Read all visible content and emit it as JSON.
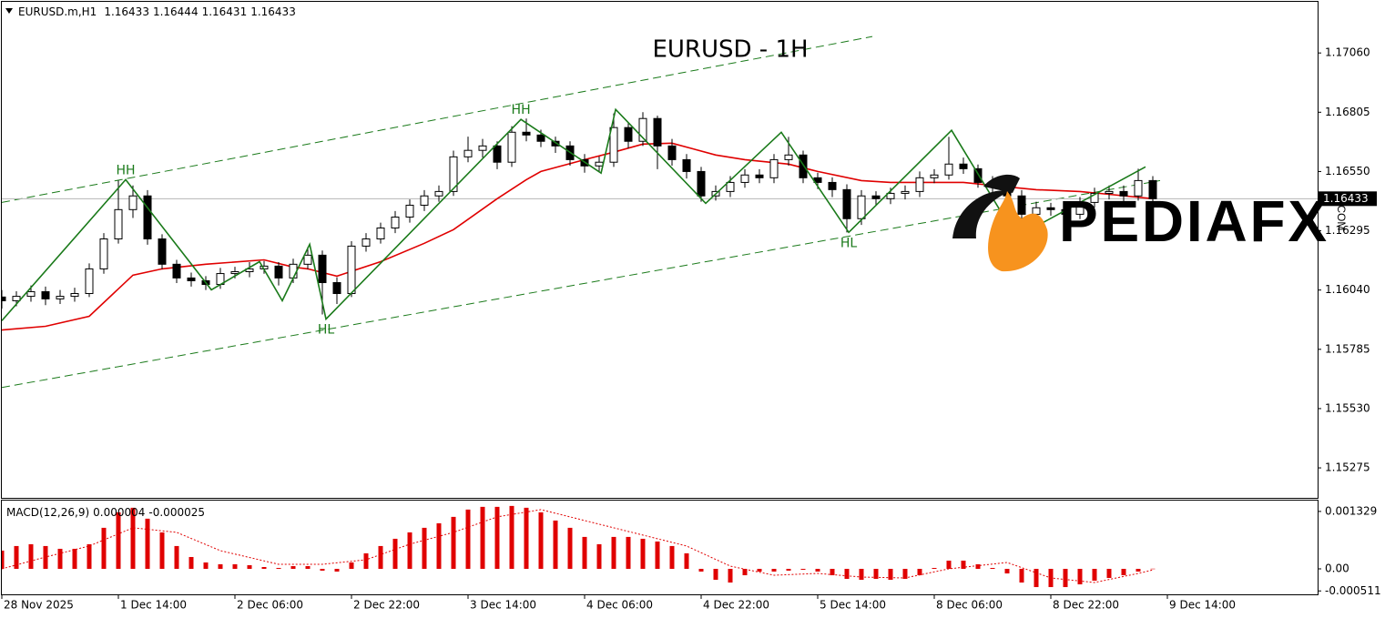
{
  "chart_data": [
    {
      "type": "candlestick",
      "symbol": "EURUSD.m,H1",
      "header_ohlc": [
        1.16433,
        1.16444,
        1.16431,
        1.16433
      ],
      "title": "EURUSD - 1H",
      "xlim": [
        0,
        90.25
      ],
      "xticks": [
        {
          "value": 0,
          "label": "28 Nov 2025"
        },
        {
          "value": 8,
          "label": "1 Dec 14:00"
        },
        {
          "value": 16,
          "label": "2 Dec 06:00"
        },
        {
          "value": 24,
          "label": "2 Dec 22:00"
        },
        {
          "value": 32,
          "label": "3 Dec 14:00"
        },
        {
          "value": 40,
          "label": "4 Dec 06:00"
        },
        {
          "value": 48,
          "label": "4 Dec 22:00"
        },
        {
          "value": 56,
          "label": "5 Dec 14:00"
        },
        {
          "value": 64,
          "label": "8 Dec 06:00"
        },
        {
          "value": 72,
          "label": "8 Dec 22:00"
        },
        {
          "value": 80,
          "label": "9 Dec 14:00"
        }
      ],
      "ylim": [
        1.15146,
        1.1728
      ],
      "yticks": [
        1.15275,
        {
          "value": 1.1553,
          "label": "1.15530"
        },
        1.15785,
        {
          "value": 1.1604,
          "label": "1.16040"
        },
        1.16295,
        {
          "value": 1.1655,
          "label": "1.16550"
        },
        1.16805,
        {
          "value": 1.1706,
          "label": "1.17060"
        }
      ],
      "up_color": "#ffffff",
      "down_color": "#000000",
      "open": [
        1.1601,
        1.15994,
        1.16013,
        1.16033,
        1.16002,
        1.16013,
        1.16025,
        1.16131,
        1.1626,
        1.16386,
        1.16445,
        1.1626,
        1.16151,
        1.16092,
        1.1608,
        1.16064,
        1.16111,
        1.16119,
        1.16131,
        1.16143,
        1.16092,
        1.16151,
        1.1619,
        1.16072,
        1.16025,
        1.16229,
        1.1626,
        1.16307,
        1.16354,
        1.16405,
        1.16445,
        1.16464,
        1.16613,
        1.16641,
        1.1666,
        1.1659,
        1.16719,
        1.16707,
        1.1668,
        1.1666,
        1.16601,
        1.16574,
        1.1659,
        1.16739,
        1.1668,
        1.16778,
        1.1666,
        1.16601,
        1.1655,
        1.16445,
        1.16464,
        1.16503,
        1.16535,
        1.16523,
        1.16601,
        1.16621,
        1.16523,
        1.16503,
        1.16472,
        1.16347,
        1.16445,
        1.16433,
        1.16456,
        1.16464,
        1.16523,
        1.16535,
        1.16582,
        1.16562,
        1.16503,
        1.16484,
        1.16445,
        1.16366,
        1.16394,
        1.16386,
        1.16366,
        1.16417,
        1.16456,
        1.16464,
        1.16445,
        1.16511
      ],
      "high": [
        1.1604,
        1.16035,
        1.1606,
        1.16055,
        1.1604,
        1.1605,
        1.16155,
        1.16285,
        1.16511,
        1.1649,
        1.1647,
        1.1628,
        1.1617,
        1.16115,
        1.161,
        1.16135,
        1.1614,
        1.1616,
        1.16165,
        1.1616,
        1.16175,
        1.16225,
        1.1621,
        1.16095,
        1.1625,
        1.16285,
        1.1633,
        1.1638,
        1.1643,
        1.1647,
        1.1649,
        1.1664,
        1.167,
        1.1669,
        1.1668,
        1.16745,
        1.16778,
        1.1673,
        1.167,
        1.1668,
        1.16625,
        1.16615,
        1.168,
        1.1676,
        1.16805,
        1.1679,
        1.1669,
        1.16625,
        1.1657,
        1.1649,
        1.1653,
        1.1656,
        1.1656,
        1.16625,
        1.16699,
        1.1664,
        1.16545,
        1.16525,
        1.16495,
        1.1647,
        1.16465,
        1.1648,
        1.1649,
        1.1655,
        1.1656,
        1.16699,
        1.1661,
        1.1658,
        1.1653,
        1.16505,
        1.1647,
        1.1642,
        1.16415,
        1.1641,
        1.1644,
        1.1648,
        1.1649,
        1.1649,
        1.16562,
        1.1653
      ],
      "low": [
        1.1596,
        1.1597,
        1.1599,
        1.15975,
        1.1598,
        1.1599,
        1.1601,
        1.1611,
        1.1624,
        1.1635,
        1.16235,
        1.1613,
        1.1607,
        1.16055,
        1.1604,
        1.16045,
        1.1609,
        1.16095,
        1.1611,
        1.1606,
        1.1607,
        1.1613,
        1.15935,
        1.1598,
        1.1601,
        1.16205,
        1.1624,
        1.16285,
        1.1633,
        1.1638,
        1.1642,
        1.16445,
        1.1659,
        1.1661,
        1.1656,
        1.1657,
        1.1668,
        1.16655,
        1.1663,
        1.16575,
        1.16545,
        1.1655,
        1.1657,
        1.1665,
        1.1666,
        1.1656,
        1.16575,
        1.1652,
        1.1642,
        1.16425,
        1.1644,
        1.1648,
        1.165,
        1.165,
        1.16575,
        1.165,
        1.16475,
        1.1644,
        1.16288,
        1.1632,
        1.16405,
        1.1641,
        1.1643,
        1.1644,
        1.165,
        1.16515,
        1.1654,
        1.1648,
        1.1646,
        1.1642,
        1.16299,
        1.1634,
        1.1636,
        1.1634,
        1.16345,
        1.16395,
        1.1643,
        1.1642,
        1.16425,
        1.1641
      ],
      "close": [
        1.15994,
        1.16013,
        1.16033,
        1.16002,
        1.16013,
        1.16025,
        1.16131,
        1.1626,
        1.16386,
        1.16445,
        1.1626,
        1.16151,
        1.16092,
        1.1608,
        1.16064,
        1.16111,
        1.16119,
        1.16131,
        1.16143,
        1.16092,
        1.16151,
        1.1619,
        1.16072,
        1.16025,
        1.16229,
        1.1626,
        1.16307,
        1.16354,
        1.16405,
        1.16445,
        1.16464,
        1.16613,
        1.16641,
        1.1666,
        1.1659,
        1.16719,
        1.16707,
        1.1668,
        1.1666,
        1.16601,
        1.16574,
        1.1659,
        1.16739,
        1.1668,
        1.16778,
        1.1666,
        1.16601,
        1.1655,
        1.16445,
        1.16464,
        1.16503,
        1.16535,
        1.16523,
        1.16601,
        1.16621,
        1.16523,
        1.16503,
        1.16472,
        1.16347,
        1.16445,
        1.16433,
        1.16456,
        1.16464,
        1.16523,
        1.16535,
        1.16582,
        1.16562,
        1.16503,
        1.16484,
        1.16445,
        1.16366,
        1.16394,
        1.16386,
        1.16366,
        1.16417,
        1.16456,
        1.16464,
        1.16445,
        1.16511,
        1.16433
      ],
      "ma": {
        "color": "#e00000",
        "x": [
          0,
          3,
          6,
          9,
          11,
          14,
          18,
          20,
          21,
          23,
          26,
          29,
          31,
          34,
          36,
          37,
          40,
          42,
          44,
          46,
          49,
          51,
          54,
          56,
          59,
          61,
          64,
          66,
          69,
          71,
          74,
          76,
          79
        ],
        "values": [
          1.15868,
          1.15884,
          1.15927,
          1.16104,
          1.16131,
          1.16151,
          1.1617,
          1.16139,
          1.16131,
          1.161,
          1.16162,
          1.16241,
          1.163,
          1.16433,
          1.16515,
          1.1655,
          1.16601,
          1.16633,
          1.16668,
          1.16672,
          1.16621,
          1.16601,
          1.16582,
          1.1655,
          1.16511,
          1.16503,
          1.16503,
          1.16503,
          1.16484,
          1.16472,
          1.16464,
          1.16452,
          1.16433
        ]
      },
      "zigzag": {
        "color": "#1a7a1a",
        "x": [
          0,
          8.5,
          14.38,
          17.69,
          19.25,
          21.13,
          22.25,
          35.63,
          41.13,
          42.13,
          48.31,
          53.5,
          58.13,
          65.19,
          69.63,
          78.5
        ],
        "values": [
          1.15908,
          1.16515,
          1.16041,
          1.16162,
          1.15994,
          1.16237,
          1.15915,
          1.16774,
          1.16543,
          1.16817,
          1.16413,
          1.16719,
          1.16288,
          1.16727,
          1.16268,
          1.1657
        ],
        "labels": [
          null,
          "HH",
          null,
          null,
          null,
          null,
          "HL",
          "HH",
          null,
          null,
          null,
          null,
          "HL",
          null,
          null,
          null
        ]
      },
      "trendlines": [
        {
          "x": [
            0,
            59.75
          ],
          "values": [
            1.16417,
            1.17131
          ]
        },
        {
          "x": [
            0,
            79.5
          ],
          "values": [
            1.15621,
            1.16511
          ]
        }
      ],
      "trendline_color": "#1a7a1a",
      "watermark": {
        "text": "PEDIAFX",
        "suffix": ".COM"
      }
    },
    {
      "type": "macd",
      "title": "MACD(12,26,9)",
      "xlim": [
        0,
        90.25
      ],
      "ylim": [
        -0.00059,
        0.00158
      ],
      "yticks": [
        -0.000511,
        {
          "value": 0,
          "label": "0.00"
        },
        0.001329
      ],
      "color": "#e00000",
      "values": [
        0.000422,
        0.000528,
        0.00057,
        0.000528,
        0.000464,
        0.000464,
        0.00057,
        0.00095,
        0.001308,
        0.001414,
        0.001161,
        0.000844,
        0.000528,
        0.000274,
        0.000148,
        0.000106,
        0.000106,
        8.4e-05,
        4.2e-05,
        2.1e-05,
        6.3e-05,
        6.3e-05,
        -4.2e-05,
        -6.3e-05,
        0.000148,
        0.000359,
        0.000528,
        0.000696,
        0.000844,
        0.00095,
        0.001055,
        0.001203,
        0.001372,
        0.001435,
        0.001435,
        0.001456,
        0.001414,
        0.001308,
        0.001118,
        0.00095,
        0.000739,
        0.00057,
        0.000739,
        0.000739,
        0.000696,
        0.000633,
        0.000528,
        0.000359,
        -6.3e-05,
        -0.000253,
        -0.000317,
        -0.000148,
        -6.3e-05,
        -6.3e-05,
        -4.2e-05,
        -2.1e-05,
        -6.3e-05,
        -0.000148,
        -0.000232,
        -0.000253,
        -0.000232,
        -0.000253,
        -0.000232,
        -0.000148,
        2.1e-05,
        0.00019,
        0.00019,
        0.000106,
        2.1e-05,
        -0.000106,
        -0.000317,
        -0.000422,
        -0.000422,
        -0.000422,
        -0.000359,
        -0.000274,
        -0.000211,
        -0.000148,
        -6.3e-05,
        4e-06
      ],
      "signal": {
        "x": [
          0,
          3,
          6,
          9,
          12,
          15,
          19,
          22,
          25,
          28,
          31,
          34,
          37,
          40,
          44,
          47,
          50,
          53,
          56,
          59,
          62,
          65,
          69,
          72,
          75,
          78,
          79
        ],
        "values": [
          0,
          0.000274,
          0.000528,
          0.00095,
          0.000844,
          0.000422,
          0.000106,
          0.000106,
          0.000211,
          0.00057,
          0.000844,
          0.001203,
          0.001372,
          0.001118,
          0.000781,
          0.000528,
          6.3e-05,
          -0.000148,
          -0.000106,
          -0.00019,
          -0.000211,
          0,
          0.000148,
          -0.000211,
          -0.000317,
          -0.000106,
          -2.5e-05
        ]
      }
    }
  ]
}
